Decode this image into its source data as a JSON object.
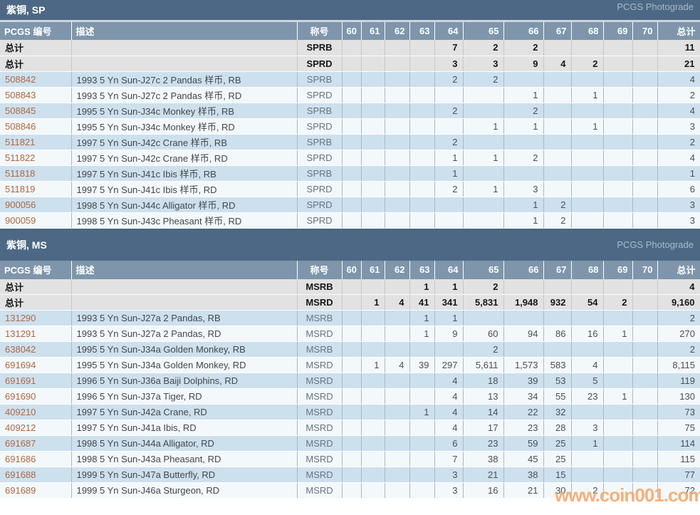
{
  "report": {
    "watermark_text": "www.coin001.com",
    "colors": {
      "section_bar": "#4d6884",
      "table_header": "#7e95ab",
      "row_blue": "#cde0ee",
      "row_light": "#f3f8fb",
      "total_row_bg": "#e3e2e2",
      "pcgs_number_link": "#b06842",
      "watermark": "#f3a669"
    },
    "sections": [
      {
        "title": "紫铜, SP",
        "photograde_label": "PCGS Photograde",
        "columns": [
          "PCGS 编号",
          "描述",
          "称号",
          "60",
          "61",
          "62",
          "63",
          "64",
          "65",
          "66",
          "67",
          "68",
          "69",
          "70",
          "总计"
        ],
        "total_rows": [
          {
            "label": "总计",
            "desc": "",
            "desig": "SPRB",
            "values": [
              "",
              "",
              "",
              "",
              "7",
              "2",
              "2",
              "",
              "",
              "",
              "",
              "11"
            ]
          },
          {
            "label": "总计",
            "desc": "",
            "desig": "SPRD",
            "values": [
              "",
              "",
              "",
              "",
              "3",
              "3",
              "9",
              "4",
              "2",
              "",
              "",
              "21"
            ]
          }
        ],
        "rows": [
          {
            "pcgs": "508842",
            "desc": "1993 5 Yn Sun-J27c 2 Pandas 样币, RB",
            "desig": "SPRB",
            "values": [
              "",
              "",
              "",
              "",
              "2",
              "2",
              "",
              "",
              "",
              "",
              "",
              "4"
            ]
          },
          {
            "pcgs": "508843",
            "desc": "1993 5 Yn Sun-J27c 2 Pandas 样币, RD",
            "desig": "SPRD",
            "values": [
              "",
              "",
              "",
              "",
              "",
              "",
              "1",
              "",
              "1",
              "",
              "",
              "2"
            ]
          },
          {
            "pcgs": "508845",
            "desc": "1995 5 Yn Sun-J34c Monkey 样币, RB",
            "desig": "SPRB",
            "values": [
              "",
              "",
              "",
              "",
              "2",
              "",
              "2",
              "",
              "",
              "",
              "",
              "4"
            ]
          },
          {
            "pcgs": "508846",
            "desc": "1995 5 Yn Sun-J34c Monkey 样币, RD",
            "desig": "SPRD",
            "values": [
              "",
              "",
              "",
              "",
              "",
              "1",
              "1",
              "",
              "1",
              "",
              "",
              "3"
            ]
          },
          {
            "pcgs": "511821",
            "desc": "1997 5 Yn Sun-J42c Crane 样币, RB",
            "desig": "SPRB",
            "values": [
              "",
              "",
              "",
              "",
              "2",
              "",
              "",
              "",
              "",
              "",
              "",
              "2"
            ]
          },
          {
            "pcgs": "511822",
            "desc": "1997 5 Yn Sun-J42c Crane 样币, RD",
            "desig": "SPRD",
            "values": [
              "",
              "",
              "",
              "",
              "1",
              "1",
              "2",
              "",
              "",
              "",
              "",
              "4"
            ]
          },
          {
            "pcgs": "511818",
            "desc": "1997 5 Yn Sun-J41c Ibis 样币, RB",
            "desig": "SPRB",
            "values": [
              "",
              "",
              "",
              "",
              "1",
              "",
              "",
              "",
              "",
              "",
              "",
              "1"
            ]
          },
          {
            "pcgs": "511819",
            "desc": "1997 5 Yn Sun-J41c Ibis 样币, RD",
            "desig": "SPRD",
            "values": [
              "",
              "",
              "",
              "",
              "2",
              "1",
              "3",
              "",
              "",
              "",
              "",
              "6"
            ]
          },
          {
            "pcgs": "900056",
            "desc": "1998 5 Yn Sun-J44c Alligator 样币, RD",
            "desig": "SPRD",
            "values": [
              "",
              "",
              "",
              "",
              "",
              "",
              "1",
              "2",
              "",
              "",
              "",
              "3"
            ]
          },
          {
            "pcgs": "900059",
            "desc": "1998 5 Yn Sun-J43c Pheasant 样币, RD",
            "desig": "SPRD",
            "values": [
              "",
              "",
              "",
              "",
              "",
              "",
              "1",
              "2",
              "",
              "",
              "",
              "3"
            ]
          }
        ]
      },
      {
        "title": "紫铜, MS",
        "photograde_label": "PCGS Photograde",
        "columns": [
          "PCGS 编号",
          "描述",
          "称号",
          "60",
          "61",
          "62",
          "63",
          "64",
          "65",
          "66",
          "67",
          "68",
          "69",
          "70",
          "总计"
        ],
        "total_rows": [
          {
            "label": "总计",
            "desc": "",
            "desig": "MSRB",
            "values": [
              "",
              "",
              "",
              "1",
              "1",
              "2",
              "",
              "",
              "",
              "",
              "",
              "4"
            ]
          },
          {
            "label": "总计",
            "desc": "",
            "desig": "MSRD",
            "values": [
              "",
              "1",
              "4",
              "41",
              "341",
              "5,831",
              "1,948",
              "932",
              "54",
              "2",
              "",
              "9,160"
            ]
          }
        ],
        "rows": [
          {
            "pcgs": "131290",
            "desc": "1993 5 Yn Sun-J27a 2 Pandas, RB",
            "desig": "MSRB",
            "values": [
              "",
              "",
              "",
              "1",
              "1",
              "",
              "",
              "",
              "",
              "",
              "",
              "2"
            ]
          },
          {
            "pcgs": "131291",
            "desc": "1993 5 Yn Sun-J27a 2 Pandas, RD",
            "desig": "MSRD",
            "values": [
              "",
              "",
              "",
              "1",
              "9",
              "60",
              "94",
              "86",
              "16",
              "1",
              "",
              "270"
            ]
          },
          {
            "pcgs": "638042",
            "desc": "1995 5 Yn Sun-J34a Golden Monkey, RB",
            "desig": "MSRB",
            "values": [
              "",
              "",
              "",
              "",
              "",
              "2",
              "",
              "",
              "",
              "",
              "",
              "2"
            ]
          },
          {
            "pcgs": "691694",
            "desc": "1995 5 Yn Sun-J34a Golden Monkey, RD",
            "desig": "MSRD",
            "values": [
              "",
              "1",
              "4",
              "39",
              "297",
              "5,611",
              "1,573",
              "583",
              "4",
              "",
              "",
              "8,115"
            ]
          },
          {
            "pcgs": "691691",
            "desc": "1996 5 Yn Sun-J36a Baiji Dolphins, RD",
            "desig": "MSRD",
            "values": [
              "",
              "",
              "",
              "",
              "4",
              "18",
              "39",
              "53",
              "5",
              "",
              "",
              "119"
            ]
          },
          {
            "pcgs": "691690",
            "desc": "1996 5 Yn Sun-J37a Tiger, RD",
            "desig": "MSRD",
            "values": [
              "",
              "",
              "",
              "",
              "4",
              "13",
              "34",
              "55",
              "23",
              "1",
              "",
              "130"
            ]
          },
          {
            "pcgs": "409210",
            "desc": "1997 5 Yn Sun-J42a Crane, RD",
            "desig": "MSRD",
            "values": [
              "",
              "",
              "",
              "1",
              "4",
              "14",
              "22",
              "32",
              "",
              "",
              "",
              "73"
            ]
          },
          {
            "pcgs": "409212",
            "desc": "1997 5 Yn Sun-J41a Ibis, RD",
            "desig": "MSRD",
            "values": [
              "",
              "",
              "",
              "",
              "4",
              "17",
              "23",
              "28",
              "3",
              "",
              "",
              "75"
            ]
          },
          {
            "pcgs": "691687",
            "desc": "1998 5 Yn Sun-J44a Alligator, RD",
            "desig": "MSRD",
            "values": [
              "",
              "",
              "",
              "",
              "6",
              "23",
              "59",
              "25",
              "1",
              "",
              "",
              "114"
            ]
          },
          {
            "pcgs": "691686",
            "desc": "1998 5 Yn Sun-J43a Pheasant, RD",
            "desig": "MSRD",
            "values": [
              "",
              "",
              "",
              "",
              "7",
              "38",
              "45",
              "25",
              "",
              "",
              "",
              "115"
            ]
          },
          {
            "pcgs": "691688",
            "desc": "1999 5 Yn Sun-J47a Butterfly, RD",
            "desig": "MSRD",
            "values": [
              "",
              "",
              "",
              "",
              "3",
              "21",
              "38",
              "15",
              "",
              "",
              "",
              "77"
            ]
          },
          {
            "pcgs": "691689",
            "desc": "1999 5 Yn Sun-J46a Sturgeon, RD",
            "desig": "MSRD",
            "values": [
              "",
              "",
              "",
              "",
              "3",
              "16",
              "21",
              "30",
              "2",
              "",
              "",
              "72"
            ]
          }
        ]
      }
    ]
  }
}
